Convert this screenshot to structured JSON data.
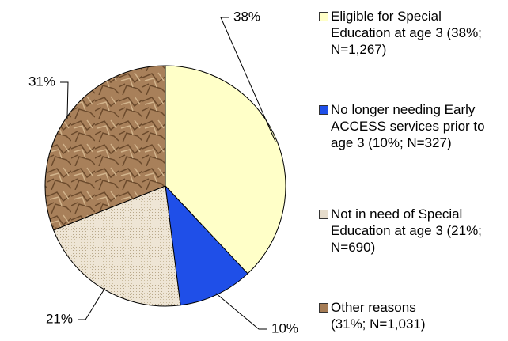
{
  "chart_data": {
    "type": "pie",
    "categories": [
      "Eligible for Special Education at age 3 (38%; N=1,267)",
      "No longer needing Early ACCESS services prior to age 3 (10%; N=327)",
      "Not in need of Special Education at age 3 (21%; N=690)",
      "Other reasons (31%; N=1,031)"
    ],
    "values": [
      38,
      10,
      21,
      31
    ],
    "value_labels": [
      "38%",
      "10%",
      "21%",
      "31%"
    ],
    "colors": [
      "#ffffc8",
      "#1f4fe8",
      "#e6dccb",
      "#a57c55"
    ],
    "legend": "right"
  }
}
